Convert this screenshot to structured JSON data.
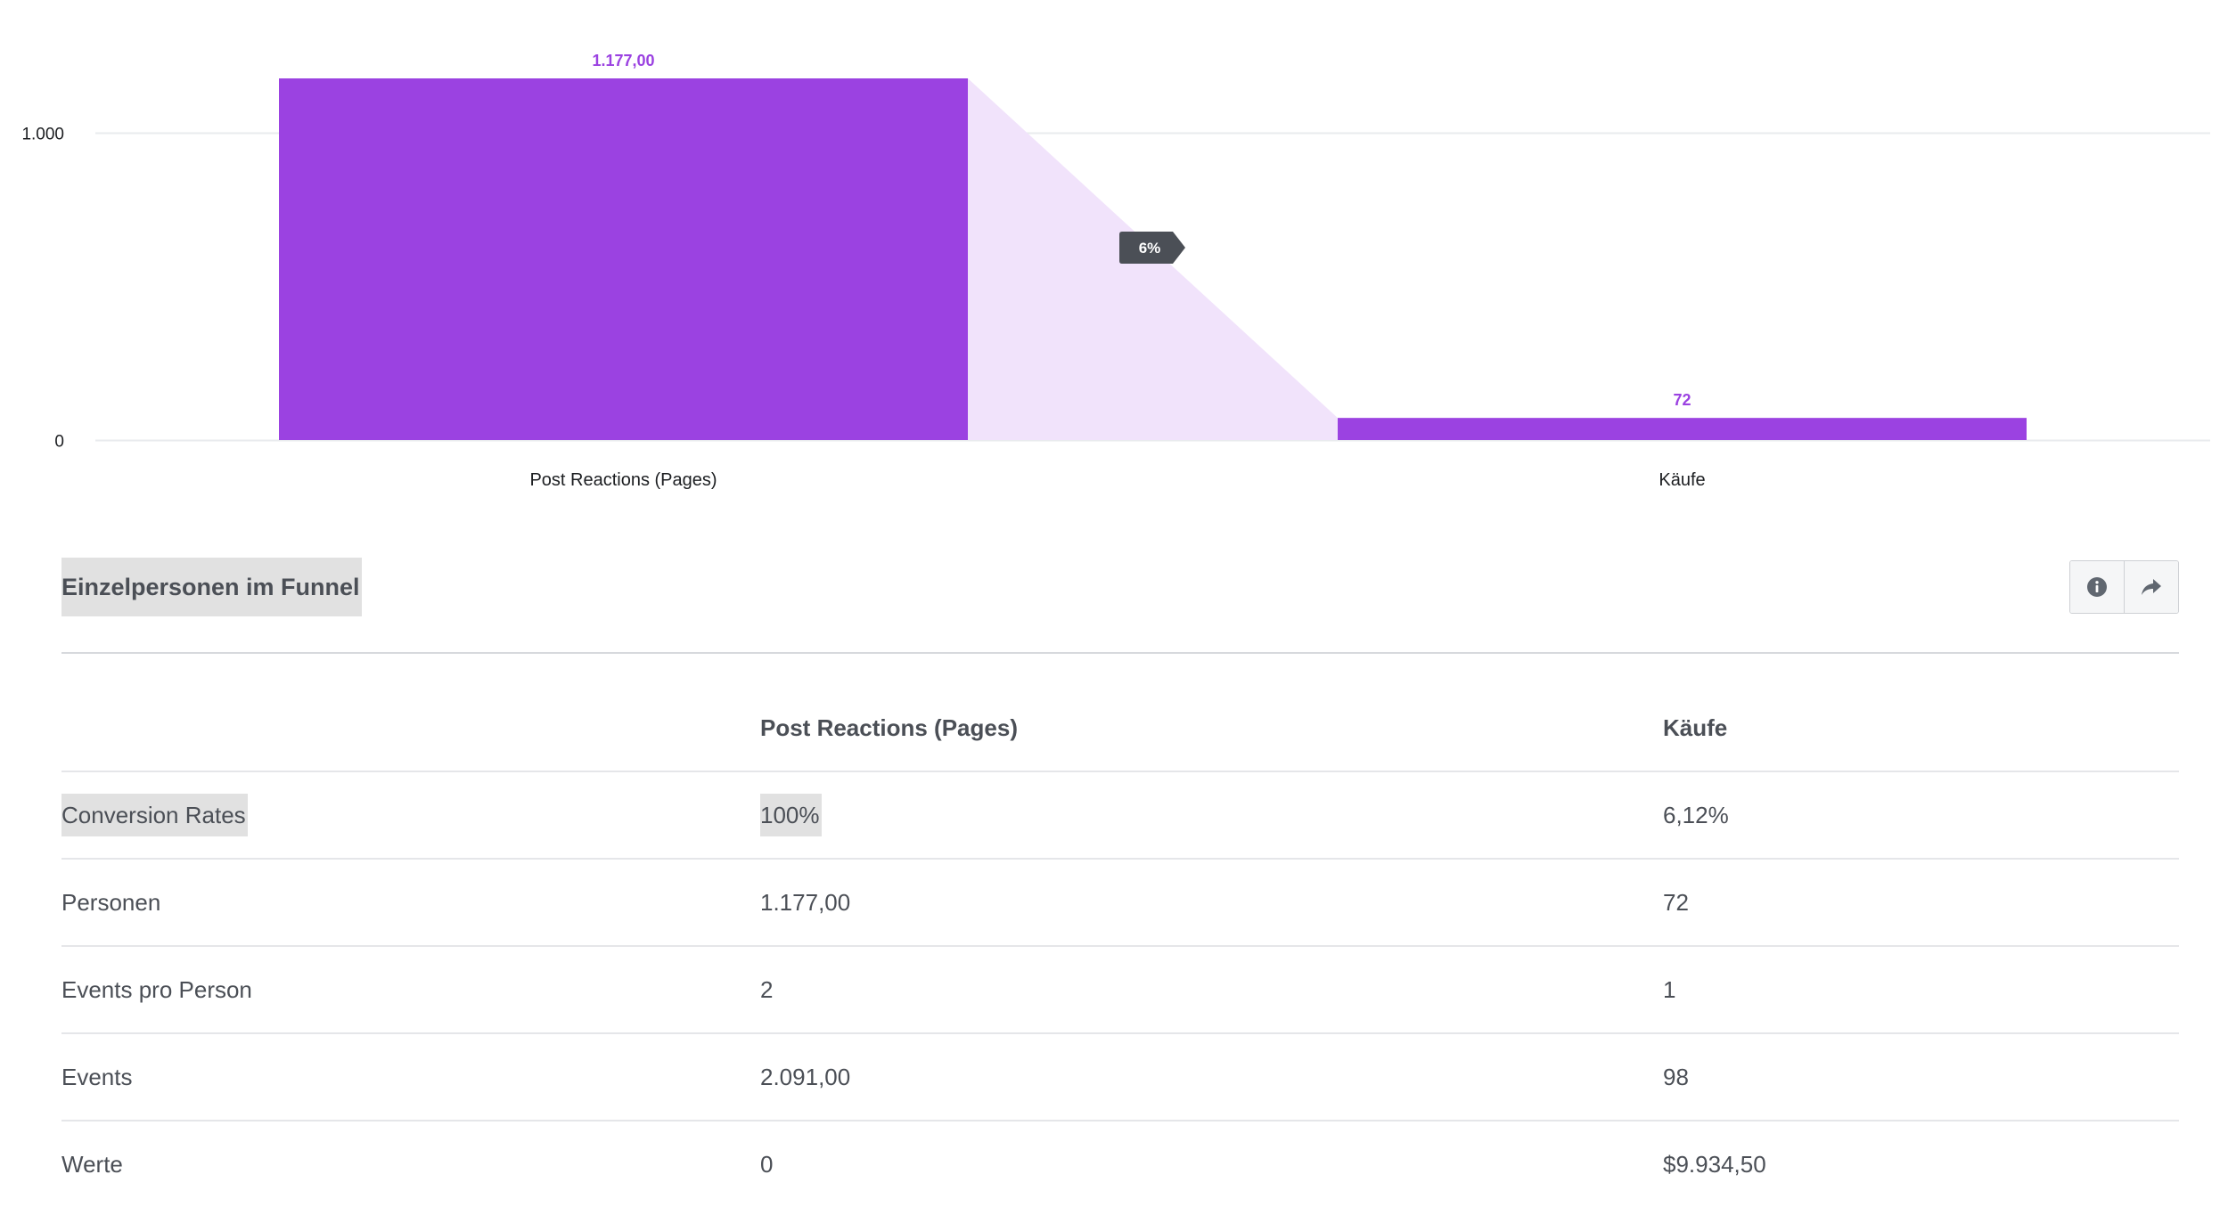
{
  "chart_data": {
    "type": "bar",
    "categories": [
      "Post Reactions (Pages)",
      "Käufe"
    ],
    "values": [
      1177,
      72
    ],
    "value_labels": [
      "1.177,00",
      "72"
    ],
    "ylim": [
      0,
      1177
    ],
    "y_ticks": [
      0,
      1000
    ],
    "y_tick_labels": [
      "0",
      "1.000"
    ],
    "conversion_label": "6%",
    "grid": true,
    "colors": {
      "bar": "#9b42e1",
      "funnel_fill": "#f1e3fb",
      "value_label": "#9b42e1",
      "badge": "#4b4f56",
      "badge_text": "#ffffff"
    }
  },
  "section": {
    "title": "Einzelpersonen im Funnel",
    "info_icon": "info-icon",
    "share_icon": "share-icon"
  },
  "table": {
    "headers": [
      "",
      "Post Reactions (Pages)",
      "Käufe"
    ],
    "rows": [
      {
        "label": "Conversion Rates",
        "a": "100%",
        "b": "6,12%"
      },
      {
        "label": "Personen",
        "a": "1.177,00",
        "b": "72"
      },
      {
        "label": "Events pro Person",
        "a": "2",
        "b": "1"
      },
      {
        "label": "Events",
        "a": "2.091,00",
        "b": "98"
      },
      {
        "label": "Werte",
        "a": "0",
        "b": "$9.934,50"
      }
    ]
  }
}
